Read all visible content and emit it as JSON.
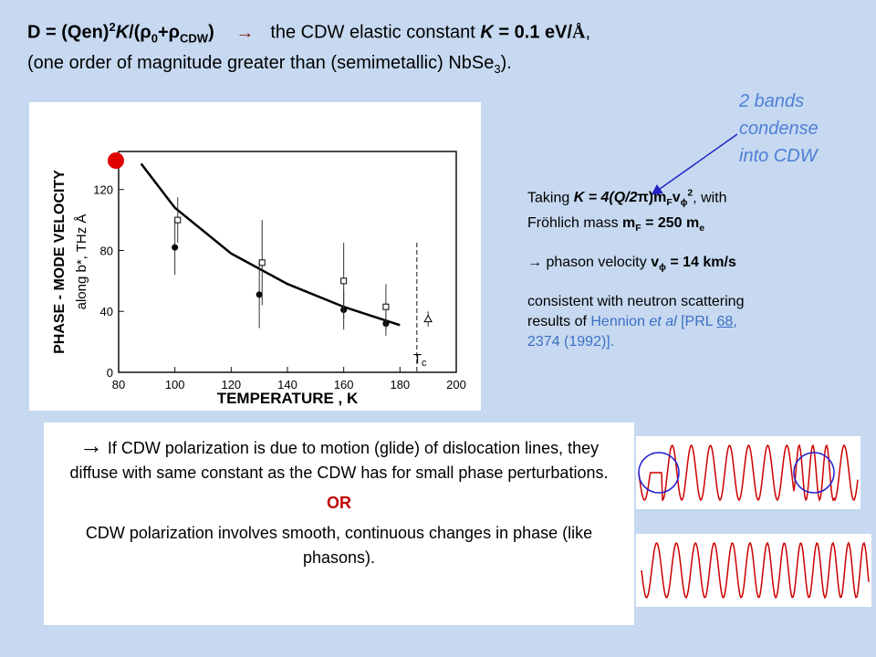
{
  "title": {
    "line1": [
      "D = (Qen)",
      "2",
      "K",
      "/(",
      "ρ",
      "0",
      "+",
      "ρ",
      "CDW",
      ")",
      "→",
      "the CDW elastic constant ",
      "K",
      " = 0.1 eV/",
      "Å",
      ","
    ],
    "line2": [
      "(one order of magnitude greater than (semimetallic) NbSe",
      "3",
      ")."
    ]
  },
  "side_note": [
    "2 bands",
    "condense",
    "into CDW"
  ],
  "right_text": {
    "p1a": [
      "Taking ",
      "K = 4(Q/2",
      "π",
      ")m",
      "F",
      "v",
      "ϕ",
      "2",
      ", with"
    ],
    "p1b": [
      "Fröhlich mass ",
      "m",
      "F",
      " = 250 m",
      "e"
    ],
    "p2": [
      "→ phason velocity ",
      "v",
      "ϕ",
      " = 14 km/s"
    ],
    "p3": [
      "consistent with neutron scattering",
      "results of ",
      "Hennion ",
      "et al",
      " [PRL ",
      "68",
      ",",
      "2374 (1992)]."
    ]
  },
  "box": {
    "p1": [
      "→",
      " If CDW polarization is due to motion (glide) of dislocation lines, they diffuse with same constant as the CDW has for small phase perturbations."
    ],
    "or": "OR",
    "p2": "CDW polarization involves smooth, continuous changes in phase (like phasons)."
  },
  "figure": {
    "ylabel": [
      "PHASE - MODE VELOCITY",
      "along b*, THz Å"
    ],
    "xlabel": "TEMPERATURE , K",
    "xlim": [
      80,
      200
    ],
    "ylim": [
      0,
      145
    ],
    "xticks": [
      80,
      100,
      120,
      140,
      160,
      180,
      200
    ],
    "yticks": [
      0,
      40,
      80,
      120
    ],
    "filled": {
      "x": [
        100,
        130,
        160,
        175
      ],
      "values": [
        82,
        51,
        41,
        32
      ],
      "errors": [
        18,
        22,
        13,
        8
      ]
    },
    "open": {
      "x": [
        101,
        131,
        160,
        175
      ],
      "values": [
        100,
        72,
        60,
        43
      ],
      "errors": [
        15,
        28,
        25,
        15
      ]
    },
    "triangle": {
      "x": [
        190
      ],
      "values": [
        35
      ],
      "errors": [
        5
      ]
    },
    "fit": {
      "x": [
        88,
        100,
        120,
        140,
        160,
        180
      ],
      "values": [
        137,
        108,
        78,
        58,
        43,
        31
      ]
    },
    "tc": {
      "x": 186,
      "label": [
        "T",
        "c"
      ]
    }
  }
}
